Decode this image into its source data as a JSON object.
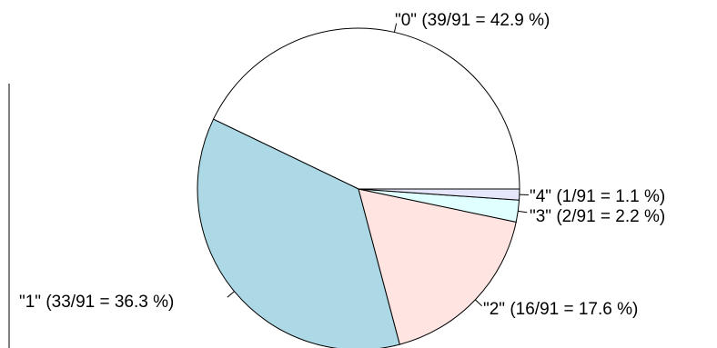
{
  "chart_data": {
    "type": "pie",
    "direction": "counterclockwise",
    "start": "right (3 o'clock)",
    "slices": [
      {
        "name": "0",
        "count": 39,
        "total": 91,
        "percent": 42.9,
        "label": "\"0\" (39/91 = 42.9 %)",
        "color": "#ffffff"
      },
      {
        "name": "1",
        "count": 33,
        "total": 91,
        "percent": 36.3,
        "label": "\"1\" (33/91 = 36.3 %)",
        "color": "#add8e6"
      },
      {
        "name": "2",
        "count": 16,
        "total": 91,
        "percent": 17.6,
        "label": "\"2\" (16/91 = 17.6 %)",
        "color": "#ffe4e1"
      },
      {
        "name": "3",
        "count": 2,
        "total": 91,
        "percent": 2.2,
        "label": "\"3\" (2/91 = 2.2 %)",
        "color": "#e0ffff"
      },
      {
        "name": "4",
        "count": 1,
        "total": 91,
        "percent": 1.1,
        "label": "\"4\" (1/91 = 1.1 %)",
        "color": "#e6e6fa"
      }
    ]
  }
}
